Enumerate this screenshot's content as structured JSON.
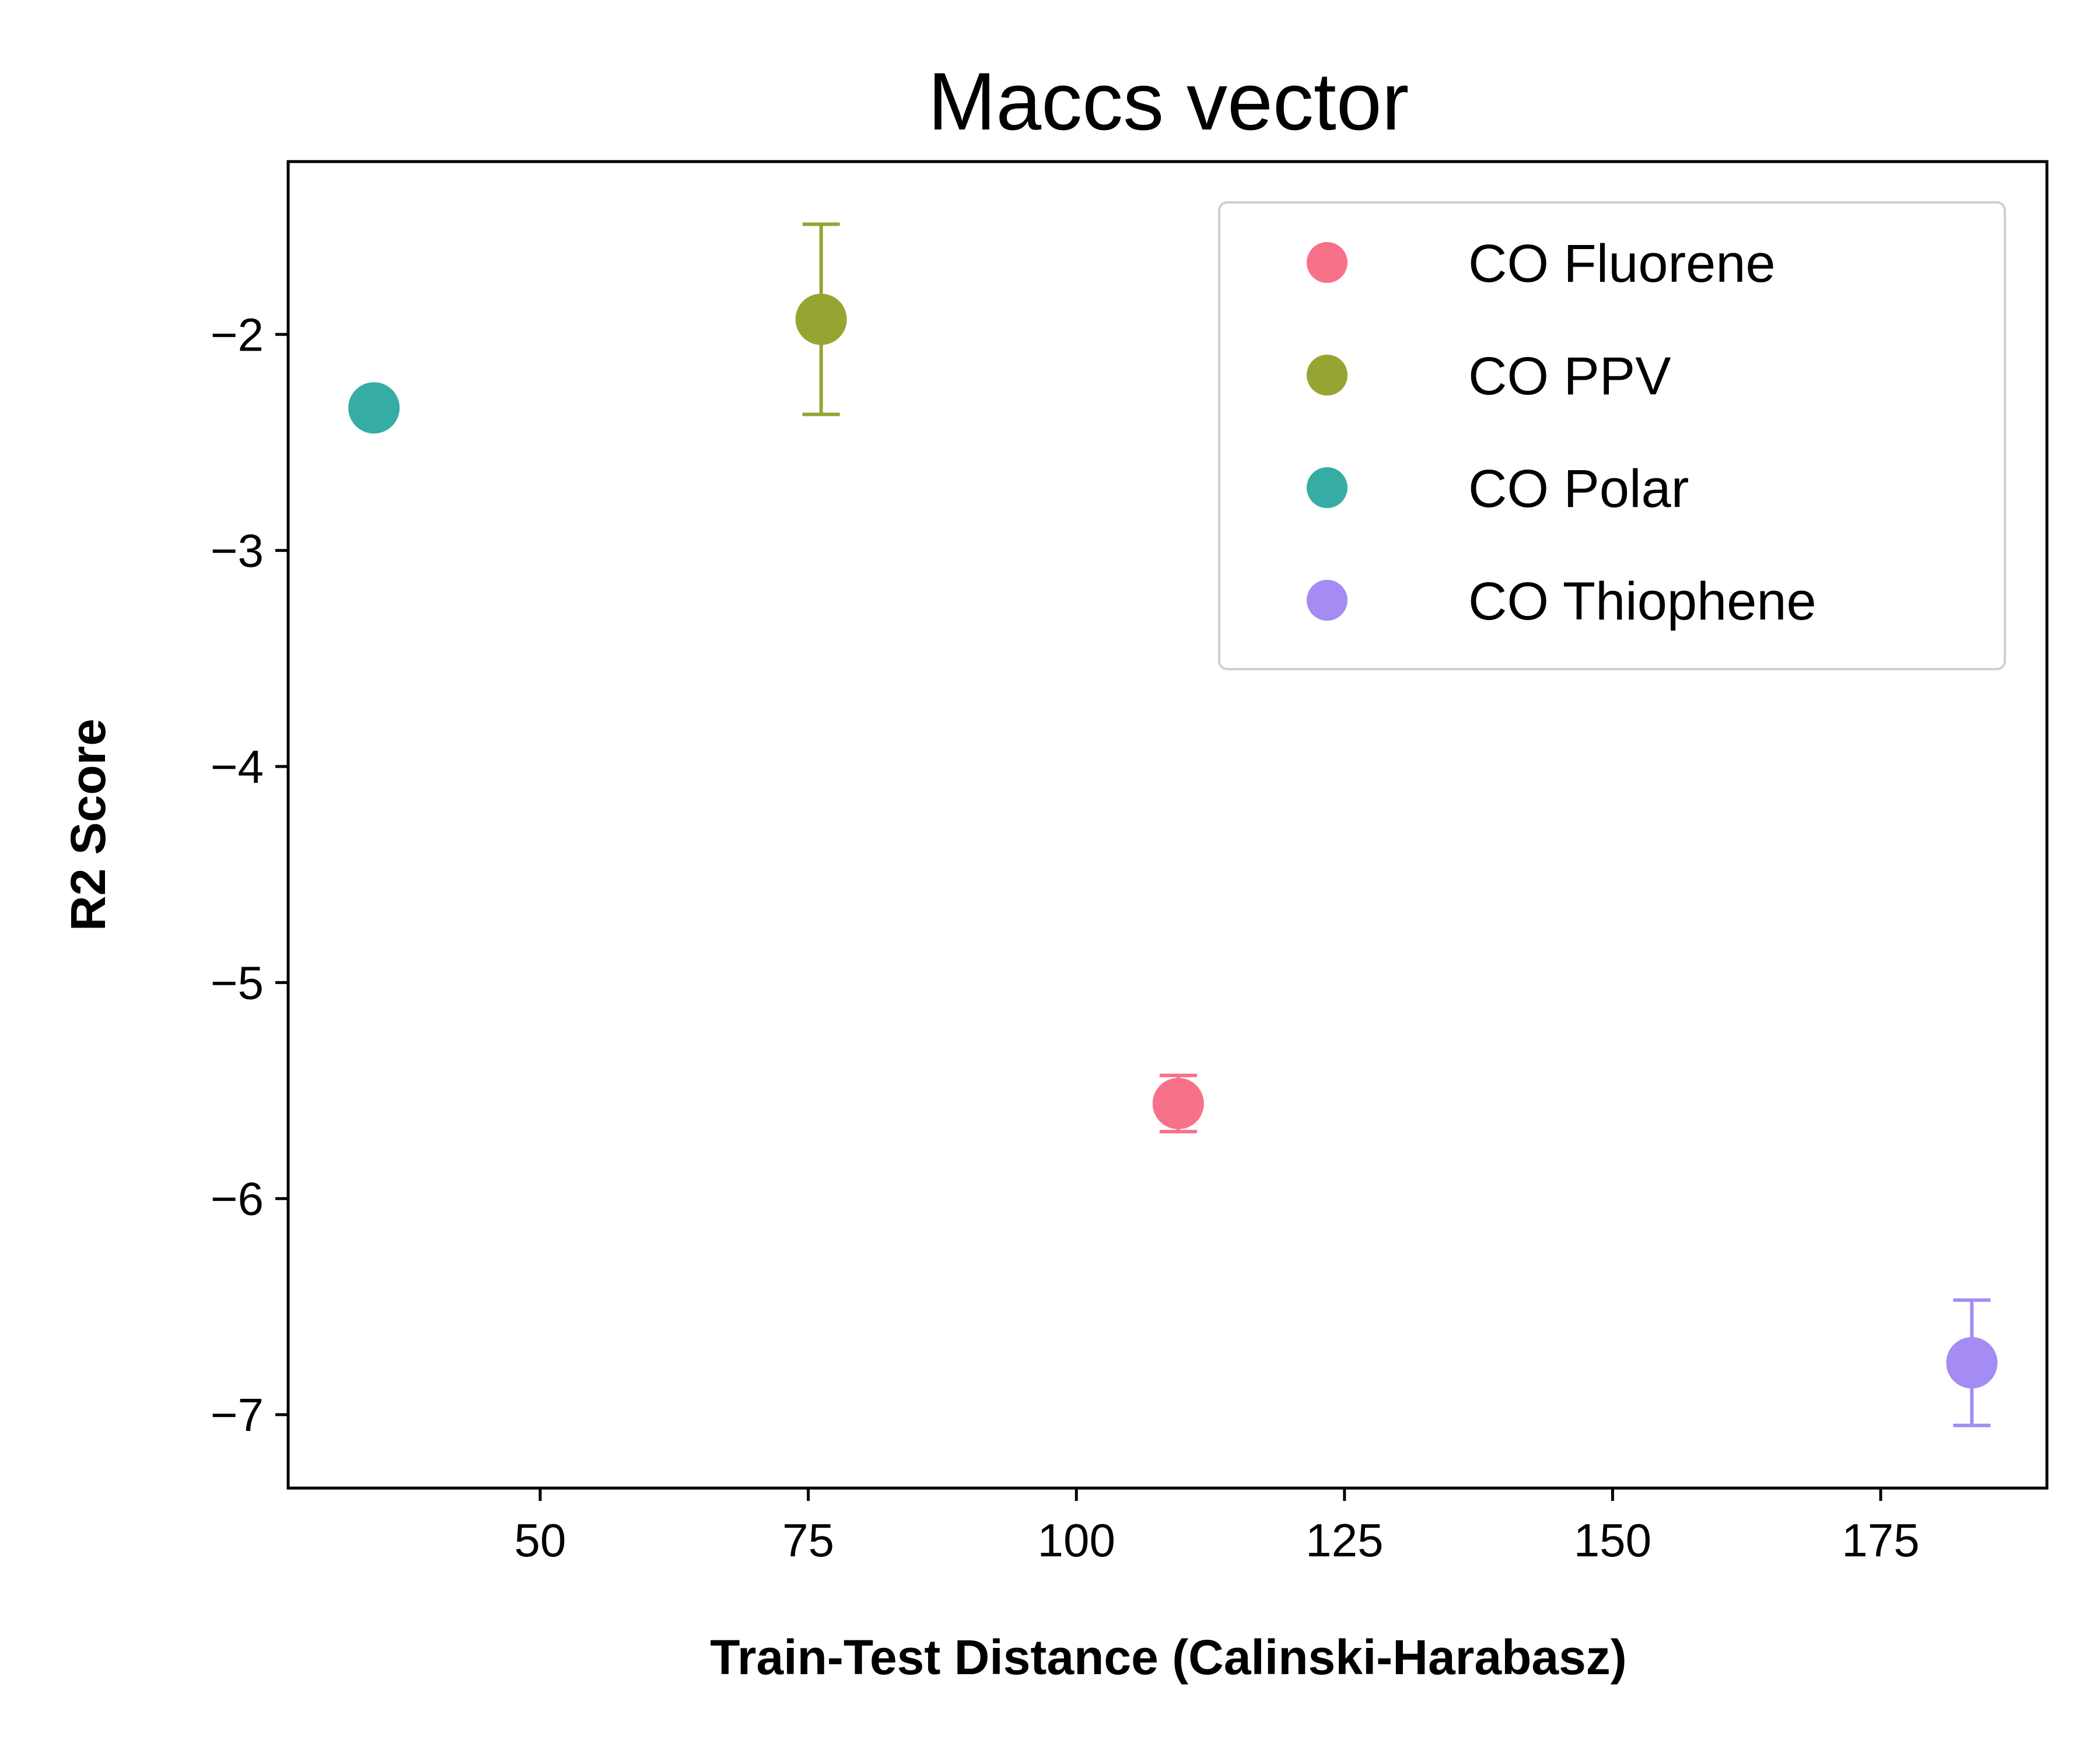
{
  "chart_data": {
    "type": "scatter",
    "title": "Maccs vector",
    "xlabel": "Train-Test Distance (Calinski-Harabasz)",
    "ylabel": "R2 Score",
    "xlim": [
      26.5,
      190.5
    ],
    "ylim": [
      -7.34,
      -1.2
    ],
    "xticks": [
      50,
      75,
      100,
      125,
      150,
      175
    ],
    "yticks": [
      -7,
      -6,
      -5,
      -4,
      -3,
      -2
    ],
    "grid": false,
    "legend_position": "top-right",
    "series": [
      {
        "name": "CO Fluorene",
        "color": "#f77189",
        "x": 109.5,
        "y": -5.56,
        "yerr": 0.13
      },
      {
        "name": "CO PPV",
        "color": "#97a431",
        "x": 76.2,
        "y": -1.93,
        "yerr": 0.44
      },
      {
        "name": "CO Polar",
        "color": "#36ada4",
        "x": 34.5,
        "y": -2.34,
        "yerr": 0
      },
      {
        "name": "CO Thiophene",
        "color": "#a48cf4",
        "x": 183.5,
        "y": -6.76,
        "yerr": 0.29
      }
    ]
  }
}
